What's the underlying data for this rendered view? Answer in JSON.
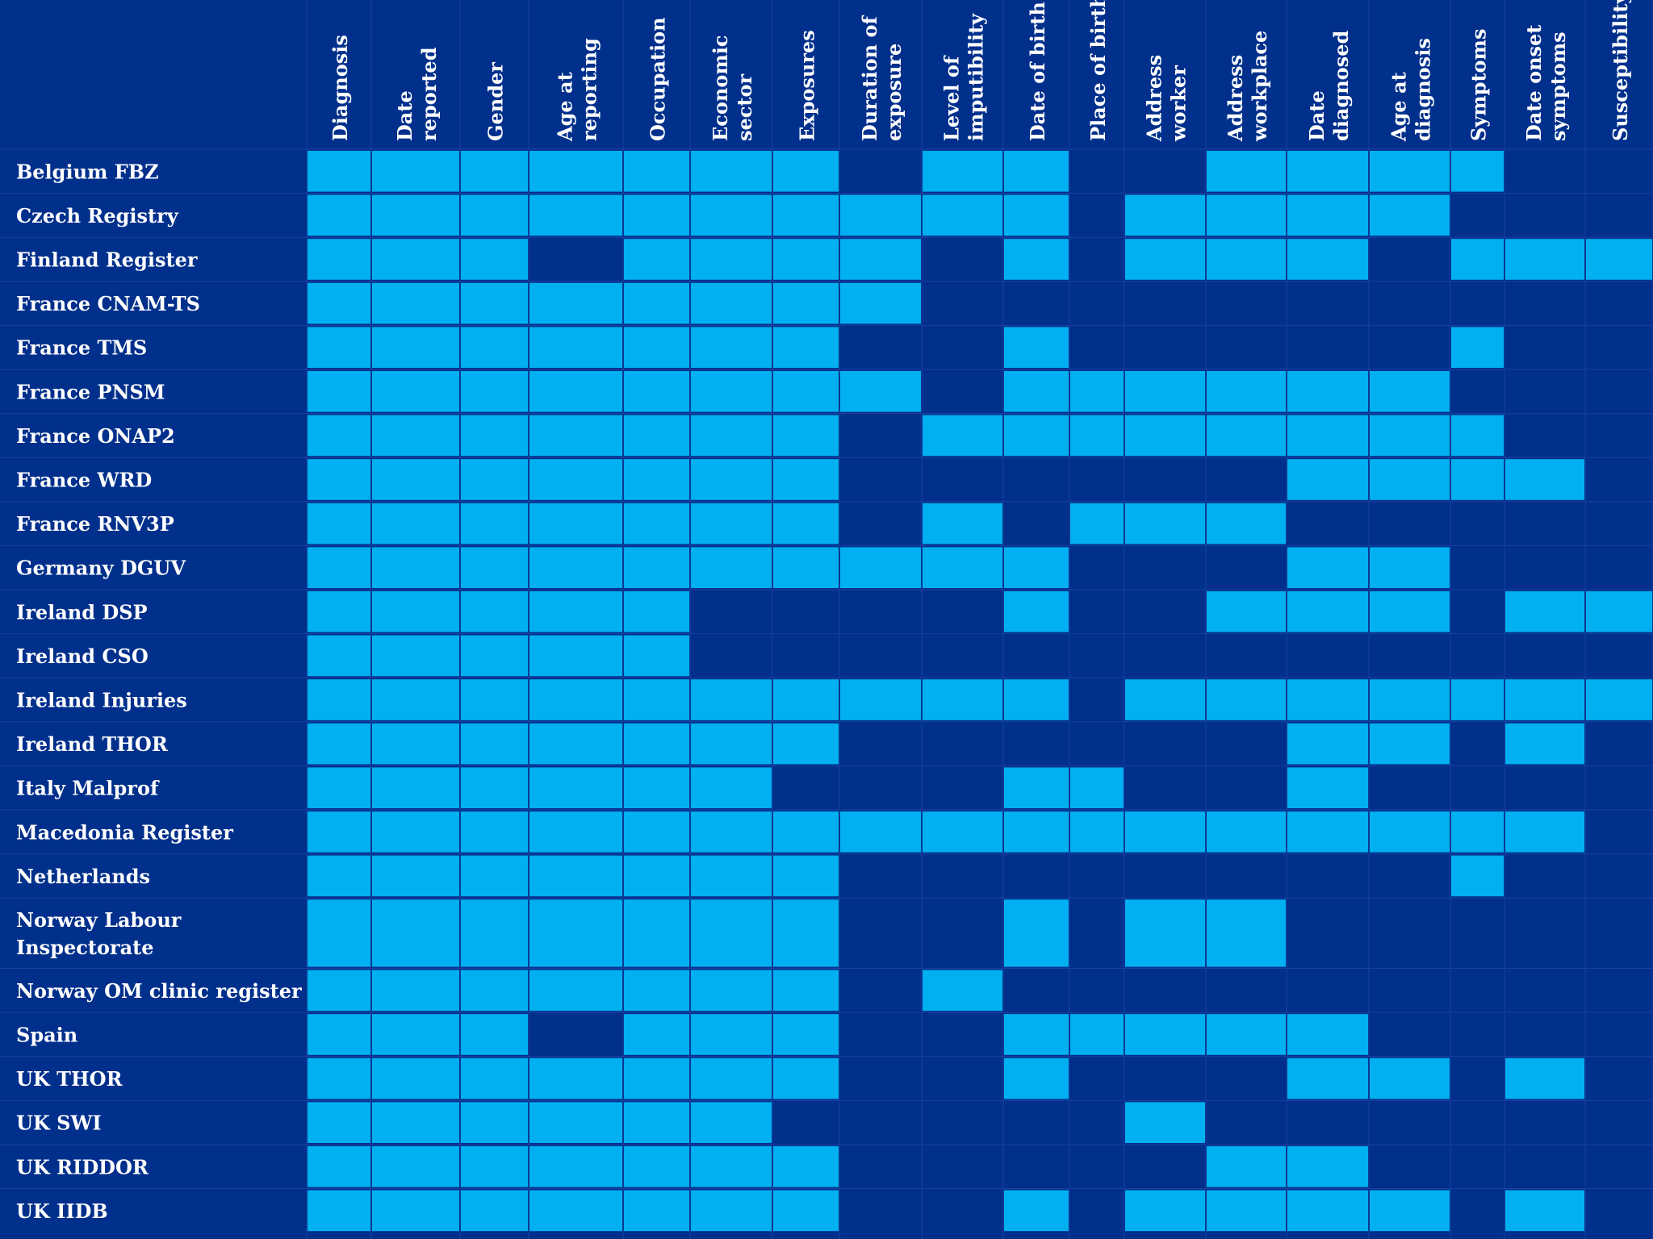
{
  "colors": {
    "background": "#00308c",
    "filled": "#00b0f0",
    "empty": "#00308c",
    "grid": "#1a3f9e",
    "text": "#ffffff"
  },
  "chart_data": {
    "type": "table",
    "title": "",
    "columns": [
      [
        "Diagnosis"
      ],
      [
        "Date",
        "reported"
      ],
      [
        "Gender"
      ],
      [
        "Age at",
        "reporting"
      ],
      [
        "Occupation"
      ],
      [
        "Economic",
        "sector"
      ],
      [
        "Exposures"
      ],
      [
        "Duration of",
        "exposure"
      ],
      [
        "Level of",
        "imputibility"
      ],
      [
        "Date of birth"
      ],
      [
        "Place of birth"
      ],
      [
        "Address",
        "worker"
      ],
      [
        "Address",
        "workplace"
      ],
      [
        "Date",
        "diagnosed"
      ],
      [
        "Age at",
        "diagnosis"
      ],
      [
        "Symptoms"
      ],
      [
        "Date onset",
        "symptoms"
      ],
      [
        "Susceptibility"
      ]
    ],
    "rows": [
      {
        "label": [
          "Belgium FBZ"
        ],
        "cells": [
          1,
          1,
          1,
          1,
          1,
          1,
          1,
          0,
          1,
          1,
          0,
          0,
          1,
          1,
          1,
          1,
          0,
          0
        ]
      },
      {
        "label": [
          "Czech Registry"
        ],
        "cells": [
          1,
          1,
          1,
          1,
          1,
          1,
          1,
          1,
          1,
          1,
          0,
          1,
          1,
          1,
          1,
          0,
          0,
          0
        ]
      },
      {
        "label": [
          "Finland Register"
        ],
        "cells": [
          1,
          1,
          1,
          0,
          1,
          1,
          1,
          1,
          0,
          1,
          0,
          1,
          1,
          1,
          0,
          1,
          1,
          1
        ]
      },
      {
        "label": [
          "France  CNAM-TS"
        ],
        "cells": [
          1,
          1,
          1,
          1,
          1,
          1,
          1,
          1,
          0,
          0,
          0,
          0,
          0,
          0,
          0,
          0,
          0,
          0
        ]
      },
      {
        "label": [
          "France TMS"
        ],
        "cells": [
          1,
          1,
          1,
          1,
          1,
          1,
          1,
          0,
          0,
          1,
          0,
          0,
          0,
          0,
          0,
          1,
          0,
          0
        ]
      },
      {
        "label": [
          "France PNSM"
        ],
        "cells": [
          1,
          1,
          1,
          1,
          1,
          1,
          1,
          1,
          0,
          1,
          1,
          1,
          1,
          1,
          1,
          0,
          0,
          0
        ]
      },
      {
        "label": [
          "France ONAP2"
        ],
        "cells": [
          1,
          1,
          1,
          1,
          1,
          1,
          1,
          0,
          1,
          1,
          1,
          1,
          1,
          1,
          1,
          1,
          0,
          0
        ]
      },
      {
        "label": [
          "France WRD"
        ],
        "cells": [
          1,
          1,
          1,
          1,
          1,
          1,
          1,
          0,
          0,
          0,
          0,
          0,
          0,
          1,
          1,
          1,
          1,
          0
        ]
      },
      {
        "label": [
          "France RNV3P"
        ],
        "cells": [
          1,
          1,
          1,
          1,
          1,
          1,
          1,
          0,
          1,
          0,
          1,
          1,
          1,
          0,
          0,
          0,
          0,
          0
        ]
      },
      {
        "label": [
          "Germany DGUV"
        ],
        "cells": [
          1,
          1,
          1,
          1,
          1,
          1,
          1,
          1,
          1,
          1,
          0,
          0,
          0,
          1,
          1,
          0,
          0,
          0
        ]
      },
      {
        "label": [
          "Ireland DSP"
        ],
        "cells": [
          1,
          1,
          1,
          1,
          1,
          0,
          0,
          0,
          0,
          1,
          0,
          0,
          1,
          1,
          1,
          0,
          1,
          1
        ]
      },
      {
        "label": [
          "Ireland CSO"
        ],
        "cells": [
          1,
          1,
          1,
          1,
          1,
          0,
          0,
          0,
          0,
          0,
          0,
          0,
          0,
          0,
          0,
          0,
          0,
          0
        ]
      },
      {
        "label": [
          "Ireland Injuries"
        ],
        "cells": [
          1,
          1,
          1,
          1,
          1,
          1,
          1,
          1,
          1,
          1,
          0,
          1,
          1,
          1,
          1,
          1,
          1,
          1
        ]
      },
      {
        "label": [
          "Ireland THOR"
        ],
        "cells": [
          1,
          1,
          1,
          1,
          1,
          1,
          1,
          0,
          0,
          0,
          0,
          0,
          0,
          1,
          1,
          0,
          1,
          0
        ]
      },
      {
        "label": [
          "Italy Malprof"
        ],
        "cells": [
          1,
          1,
          1,
          1,
          1,
          1,
          0,
          0,
          0,
          1,
          1,
          0,
          0,
          1,
          0,
          0,
          0,
          0
        ]
      },
      {
        "label": [
          "Macedonia Register"
        ],
        "cells": [
          1,
          1,
          1,
          1,
          1,
          1,
          1,
          1,
          1,
          1,
          1,
          1,
          1,
          1,
          1,
          1,
          1,
          0
        ]
      },
      {
        "label": [
          "Netherlands"
        ],
        "cells": [
          1,
          1,
          1,
          1,
          1,
          1,
          1,
          0,
          0,
          0,
          0,
          0,
          0,
          0,
          0,
          1,
          0,
          0
        ]
      },
      {
        "label": [
          "Norway Labour",
          "Inspectorate"
        ],
        "cells": [
          1,
          1,
          1,
          1,
          1,
          1,
          1,
          0,
          0,
          1,
          0,
          1,
          1,
          0,
          0,
          0,
          0,
          0
        ]
      },
      {
        "label": [
          "Norway OM clinic register"
        ],
        "cells": [
          1,
          1,
          1,
          1,
          1,
          1,
          1,
          0,
          1,
          0,
          0,
          0,
          0,
          0,
          0,
          0,
          0,
          0
        ]
      },
      {
        "label": [
          "Spain"
        ],
        "cells": [
          1,
          1,
          1,
          0,
          1,
          1,
          1,
          0,
          0,
          1,
          1,
          1,
          1,
          1,
          0,
          0,
          0,
          0
        ]
      },
      {
        "label": [
          "UK  THOR"
        ],
        "cells": [
          1,
          1,
          1,
          1,
          1,
          1,
          1,
          0,
          0,
          1,
          0,
          0,
          0,
          1,
          1,
          0,
          1,
          0
        ]
      },
      {
        "label": [
          "UK SWI"
        ],
        "cells": [
          1,
          1,
          1,
          1,
          1,
          1,
          0,
          0,
          0,
          0,
          0,
          1,
          0,
          0,
          0,
          0,
          0,
          0
        ]
      },
      {
        "label": [
          "UK RIDDOR"
        ],
        "cells": [
          1,
          1,
          1,
          1,
          1,
          1,
          1,
          0,
          0,
          0,
          0,
          0,
          1,
          1,
          0,
          0,
          0,
          0
        ]
      },
      {
        "label": [
          "UK IIDB"
        ],
        "cells": [
          1,
          1,
          1,
          1,
          1,
          1,
          1,
          0,
          0,
          1,
          0,
          1,
          1,
          1,
          1,
          0,
          1,
          0
        ]
      }
    ]
  }
}
